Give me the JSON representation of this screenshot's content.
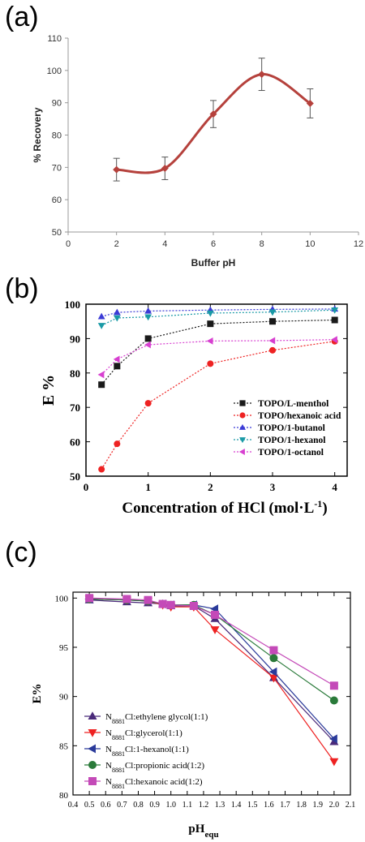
{
  "chart_data": [
    {
      "panel_label": "(a)",
      "type": "line",
      "xlabel": "Buffer pH",
      "ylabel": "% Recovery",
      "xlim": [
        0,
        12
      ],
      "ylim": [
        50,
        110
      ],
      "xticks": [
        "0",
        "2",
        "4",
        "6",
        "8",
        "10",
        "12"
      ],
      "yticks": [
        "50",
        "60",
        "70",
        "80",
        "90",
        "100",
        "110"
      ],
      "series": [
        {
          "x": [
            2,
            4,
            6,
            8,
            10
          ],
          "y": [
            69.3,
            69.7,
            86.5,
            98.8,
            89.8
          ],
          "err": [
            3.5,
            3.5,
            4.2,
            5.0,
            4.5
          ],
          "color": "#b5413c",
          "smooth": true
        }
      ],
      "grid": false
    },
    {
      "panel_label": "(b)",
      "type": "line",
      "xlabel": "Concentration of HCl (mol·L",
      "xlabel_sup": "-1",
      "xlabel_end": ")",
      "ylabel": "E %",
      "xlim": [
        0,
        4.2
      ],
      "ylim": [
        50,
        100
      ],
      "xticks": [
        "0",
        "1",
        "2",
        "3",
        "4"
      ],
      "yticks": [
        "50",
        "60",
        "70",
        "80",
        "90",
        "100"
      ],
      "legend_position": "bottom-right",
      "series": [
        {
          "name": "TOPO/L-menthol",
          "x": [
            0.25,
            0.5,
            1,
            2,
            3,
            4
          ],
          "y": [
            76.6,
            82,
            90,
            94.3,
            95,
            95.4
          ],
          "color": "#1a1a1a",
          "marker": "square"
        },
        {
          "name": "TOPO/hexanoic acid",
          "x": [
            0.25,
            0.5,
            1,
            2,
            3,
            4
          ],
          "y": [
            52,
            59.4,
            71.2,
            82.7,
            86.6,
            89.2
          ],
          "color": "#ee2222",
          "marker": "circle"
        },
        {
          "name": "TOPO/1-butanol",
          "x": [
            0.25,
            0.5,
            1,
            2,
            3,
            4
          ],
          "y": [
            96.4,
            97.6,
            98,
            98.3,
            98.5,
            98.6
          ],
          "color": "#3b3bd6",
          "marker": "triangle-up"
        },
        {
          "name": "TOPO/1-hexanol",
          "x": [
            0.25,
            0.5,
            1,
            2,
            3,
            4
          ],
          "y": [
            93.8,
            96,
            96.3,
            97.4,
            97.7,
            98.3
          ],
          "color": "#1a9aa6",
          "marker": "triangle-down"
        },
        {
          "name": "TOPO/1-octanol",
          "x": [
            0.25,
            0.5,
            1,
            2,
            3,
            4
          ],
          "y": [
            79.5,
            84,
            88.2,
            89.3,
            89.4,
            89.7
          ],
          "color": "#d73fd0",
          "marker": "triangle-left"
        }
      ],
      "grid": false
    },
    {
      "panel_label": "(c)",
      "type": "line",
      "xlabel": "pH",
      "xlabel_sub": "equ",
      "ylabel": "E%",
      "xlim": [
        0.4,
        2.1
      ],
      "ylim": [
        80,
        100.6
      ],
      "xticks": [
        "0.4",
        "0.5",
        "0.6",
        "0.7",
        "0.8",
        "0.9",
        "1.0",
        "1.1",
        "1.2",
        "1.3",
        "1.4",
        "1.5",
        "1.6",
        "1.7",
        "1.8",
        "1.9",
        "2.0",
        "2.1"
      ],
      "yticks": [
        "80",
        "85",
        "90",
        "95",
        "100"
      ],
      "legend_position": "bottom-left",
      "series": [
        {
          "name_pre": "N",
          "name_sub": "8881",
          "name_post": "Cl:ethylene glycol(1:1)",
          "x": [
            0.5,
            0.73,
            0.86,
            0.95,
            1.0,
            1.14,
            1.27,
            1.63,
            2.0
          ],
          "y": [
            99.8,
            99.6,
            99.5,
            99.4,
            99.2,
            99.2,
            97.9,
            91.9,
            85.4
          ],
          "color": "#4a2a7a",
          "marker": "triangle-up"
        },
        {
          "name_pre": "N",
          "name_sub": "8881",
          "name_post": "Cl:glycerol(1:1)",
          "x": [
            0.5,
            0.73,
            0.86,
            0.95,
            1.0,
            1.14,
            1.27,
            1.63,
            2.0
          ],
          "y": [
            99.9,
            99.8,
            99.7,
            99.3,
            99.1,
            99.1,
            96.8,
            91.9,
            83.4
          ],
          "color": "#ee2222",
          "marker": "triangle-down"
        },
        {
          "name_pre": "N",
          "name_sub": "8881",
          "name_post": "Cl:1-hexanol(1:1)",
          "x": [
            0.5,
            0.73,
            0.86,
            0.95,
            1.0,
            1.14,
            1.27,
            1.63,
            2.0
          ],
          "y": [
            99.9,
            99.8,
            99.7,
            99.4,
            99.3,
            99.3,
            98.9,
            92.5,
            85.7
          ],
          "color": "#2a3a9a",
          "marker": "triangle-left"
        },
        {
          "name_pre": "N",
          "name_sub": "8881",
          "name_post": "Cl:propionic acid(1:2)",
          "x": [
            0.5,
            0.73,
            0.86,
            0.95,
            1.0,
            1.14,
            1.27,
            1.63,
            2.0
          ],
          "y": [
            99.9,
            99.8,
            99.7,
            99.4,
            99.3,
            99.3,
            98.3,
            93.9,
            89.6
          ],
          "color": "#2a7a3a",
          "marker": "circle"
        },
        {
          "name_pre": "N",
          "name_sub": "8881",
          "name_post": "Cl:hexanoic acid(1:2)",
          "x": [
            0.5,
            0.73,
            0.86,
            0.95,
            1.0,
            1.14,
            1.27,
            1.63,
            2.0
          ],
          "y": [
            100,
            99.9,
            99.8,
            99.4,
            99.3,
            99.2,
            98.3,
            94.7,
            91.1
          ],
          "color": "#c44ab8",
          "marker": "square"
        }
      ],
      "grid": false
    }
  ]
}
